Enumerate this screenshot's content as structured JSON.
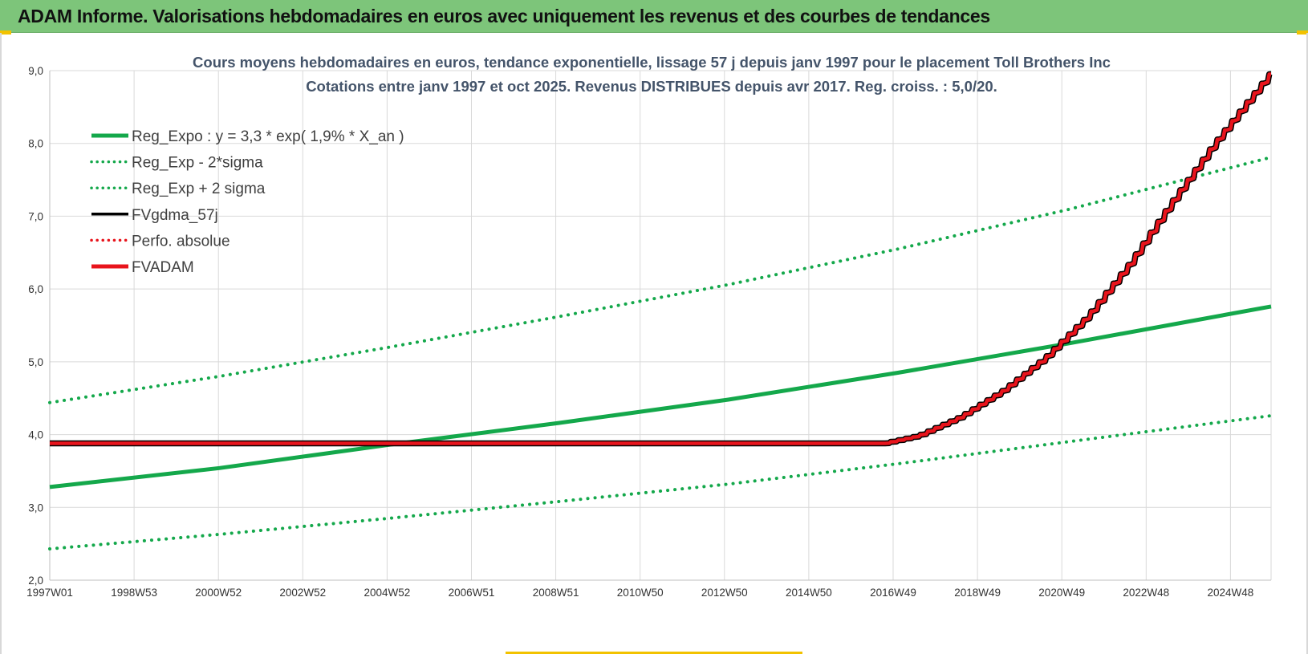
{
  "header": {
    "title": "ADAM Informe. Valorisations hebdomadaires en euros avec uniquement les revenus et des courbes de tendances"
  },
  "colors": {
    "header_bg": "#7dc57a",
    "trend": "#14a84b",
    "black_line": "#000000",
    "adam": "#e8141c",
    "title_text": "#44546a"
  },
  "chart_data": {
    "type": "line",
    "title": "Cours moyens hebdomadaires en euros, tendance exponentielle, lissage 57 j depuis janv 1997 pour le placement Toll Brothers Inc",
    "subtitle": "Cotations entre janv 1997 et oct 2025. Revenus DISTRIBUES depuis avr 2017. Reg. croiss. : 5,0/20.",
    "xlabel": "",
    "ylabel": "",
    "ylim": [
      2.0,
      9.0
    ],
    "yticks": [
      "2,0",
      "3,0",
      "4,0",
      "5,0",
      "6,0",
      "7,0",
      "8,0",
      "9,0"
    ],
    "xlim": [
      1997.0,
      2025.8
    ],
    "xticks": [
      "1997W01",
      "1998W53",
      "2000W52",
      "2002W52",
      "2004W52",
      "2006W51",
      "2008W51",
      "2010W50",
      "2012W50",
      "2014W50",
      "2016W49",
      "2018W49",
      "2020W49",
      "2022W48",
      "2024W48"
    ],
    "grid": true,
    "legend_position": "top-left",
    "series": [
      {
        "name": "Reg_Expo : y = 3,3 * exp( 1,9% * X_an )",
        "style": "solid",
        "color": "#14a84b",
        "x": [
          1997.0,
          2001.0,
          2005.0,
          2009.0,
          2013.0,
          2017.0,
          2021.0,
          2025.8
        ],
        "y": [
          3.28,
          3.54,
          3.86,
          4.16,
          4.48,
          4.85,
          5.25,
          5.76
        ]
      },
      {
        "name": "Reg_Exp - 2*sigma",
        "style": "dotted",
        "color": "#14a84b",
        "x": [
          1997.0,
          2001.0,
          2005.0,
          2009.0,
          2013.0,
          2017.0,
          2021.0,
          2025.8
        ],
        "y": [
          2.43,
          2.63,
          2.85,
          3.08,
          3.32,
          3.6,
          3.9,
          4.26
        ]
      },
      {
        "name": "Reg_Exp + 2 sigma",
        "style": "dotted",
        "color": "#14a84b",
        "x": [
          1997.0,
          2001.0,
          2005.0,
          2009.0,
          2013.0,
          2017.0,
          2021.0,
          2025.8
        ],
        "y": [
          4.44,
          4.8,
          5.2,
          5.62,
          6.06,
          6.55,
          7.09,
          7.81
        ]
      },
      {
        "name": "FVgdma_57j",
        "style": "solid",
        "color": "#000000",
        "x": [
          1997.0,
          2016.7,
          2017.5,
          2018.5,
          2019.5,
          2020.5,
          2021.5,
          2022.5,
          2023.5,
          2024.5,
          2025.8
        ],
        "y": [
          3.88,
          3.88,
          3.98,
          4.24,
          4.6,
          5.05,
          5.62,
          6.35,
          7.2,
          8.0,
          8.95
        ]
      },
      {
        "name": "Perfo. absolue",
        "style": "dotted",
        "color": "#e8141c",
        "x": [],
        "y": []
      },
      {
        "name": "FVADAM",
        "style": "solid",
        "color": "#e8141c",
        "x": [
          1997.0,
          2016.7,
          2017.5,
          2018.5,
          2019.5,
          2020.5,
          2021.5,
          2022.5,
          2023.5,
          2024.5,
          2025.8
        ],
        "y": [
          3.88,
          3.88,
          3.98,
          4.24,
          4.6,
          5.05,
          5.62,
          6.35,
          7.2,
          8.0,
          8.95
        ]
      }
    ]
  }
}
